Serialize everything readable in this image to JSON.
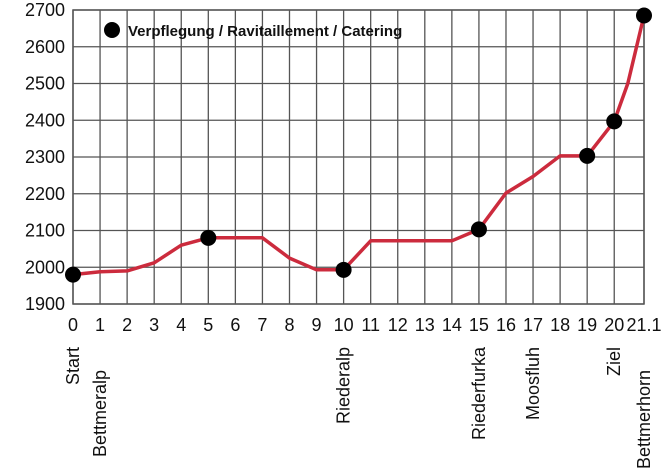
{
  "chart_data": {
    "type": "line",
    "xlabel": "",
    "ylabel": "",
    "xlim": [
      0,
      21.1
    ],
    "ylim": [
      1900,
      2700
    ],
    "grid": true,
    "x_ticks": [
      "0",
      "1",
      "2",
      "3",
      "4",
      "5",
      "6",
      "7",
      "8",
      "9",
      "10",
      "11",
      "12",
      "13",
      "14",
      "15",
      "16",
      "17",
      "18",
      "19",
      "20",
      "21.1"
    ],
    "y_ticks": [
      "1900",
      "2000",
      "2100",
      "2200",
      "2300",
      "2400",
      "2500",
      "2600",
      "2700"
    ],
    "series": [
      {
        "color": "#cc2b3d",
        "x": [
          0,
          1,
          2,
          3,
          4,
          5,
          6,
          7,
          8,
          9,
          10,
          11,
          12,
          13,
          14,
          15,
          16,
          17,
          18,
          19,
          20,
          20.5,
          21.1
        ],
        "y": [
          1980,
          1988,
          1990,
          2012,
          2060,
          2080,
          2080,
          2080,
          2025,
          1993,
          1993,
          2072,
          2072,
          2072,
          2072,
          2103,
          2202,
          2247,
          2303,
          2303,
          2397,
          2500,
          2685
        ]
      }
    ],
    "catering_points": [
      {
        "x": 0,
        "y": 1980
      },
      {
        "x": 5,
        "y": 2080
      },
      {
        "x": 10,
        "y": 1993
      },
      {
        "x": 15,
        "y": 2103
      },
      {
        "x": 19,
        "y": 2303
      },
      {
        "x": 20,
        "y": 2397
      },
      {
        "x": 21.1,
        "y": 2685
      }
    ],
    "legend": {
      "label": "Verpflegung / Ravitaillement / Catering",
      "position": "top-left",
      "marker_color": "#000000"
    },
    "place_labels": [
      {
        "x": 0,
        "label": "Start",
        "row": 0
      },
      {
        "x": 1,
        "label": "Bettmeralp",
        "row": 1
      },
      {
        "x": 10,
        "label": "Riederalp",
        "row": 0
      },
      {
        "x": 15,
        "label": "Riederfurka",
        "row": 0
      },
      {
        "x": 17,
        "label": "Moosfluh",
        "row": 0
      },
      {
        "x": 20,
        "label": "Ziel",
        "row": 0
      },
      {
        "x": 21.1,
        "label": "Bettmerhorn",
        "row": 1
      }
    ]
  }
}
